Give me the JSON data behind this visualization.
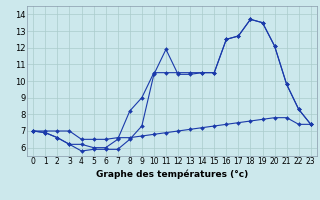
{
  "xlabel": "Graphe des températures (°c)",
  "background_color": "#cce8ec",
  "grid_color": "#aacccc",
  "line_color": "#1a3aaa",
  "xlim": [
    -0.5,
    23.5
  ],
  "ylim": [
    5.5,
    14.5
  ],
  "xticks": [
    0,
    1,
    2,
    3,
    4,
    5,
    6,
    7,
    8,
    9,
    10,
    11,
    12,
    13,
    14,
    15,
    16,
    17,
    18,
    19,
    20,
    21,
    22,
    23
  ],
  "yticks": [
    6,
    7,
    8,
    9,
    10,
    11,
    12,
    13,
    14
  ],
  "series1_x": [
    0,
    1,
    2,
    3,
    4,
    5,
    6,
    7,
    8,
    9,
    10,
    11,
    12,
    13,
    14,
    15,
    16,
    17,
    18,
    19,
    20,
    21,
    22,
    23
  ],
  "series1_y": [
    7.0,
    6.9,
    6.6,
    6.2,
    5.8,
    5.9,
    5.9,
    5.9,
    6.5,
    7.3,
    10.4,
    11.9,
    10.4,
    10.4,
    10.5,
    10.5,
    12.5,
    12.7,
    13.7,
    13.5,
    12.1,
    9.8,
    8.3,
    7.4
  ],
  "series2_x": [
    0,
    1,
    2,
    3,
    4,
    5,
    6,
    7,
    8,
    9,
    10,
    11,
    12,
    13,
    14,
    15,
    16,
    17,
    18,
    19,
    20,
    21,
    22,
    23
  ],
  "series2_y": [
    7.0,
    6.9,
    6.6,
    6.2,
    6.2,
    6.0,
    6.0,
    6.5,
    8.2,
    9.0,
    10.5,
    10.5,
    10.5,
    10.5,
    10.5,
    10.5,
    12.5,
    12.7,
    13.7,
    13.5,
    12.1,
    9.8,
    8.3,
    7.4
  ],
  "series3_x": [
    0,
    1,
    2,
    3,
    4,
    5,
    6,
    7,
    8,
    9,
    10,
    11,
    12,
    13,
    14,
    15,
    16,
    17,
    18,
    19,
    20,
    21,
    22,
    23
  ],
  "series3_y": [
    7.0,
    7.0,
    7.0,
    7.0,
    6.5,
    6.5,
    6.5,
    6.6,
    6.6,
    6.7,
    6.8,
    6.9,
    7.0,
    7.1,
    7.2,
    7.3,
    7.4,
    7.5,
    7.6,
    7.7,
    7.8,
    7.8,
    7.4,
    7.4
  ],
  "xlabel_fontsize": 6.5,
  "tick_fontsize_x": 5.5,
  "tick_fontsize_y": 6.0
}
